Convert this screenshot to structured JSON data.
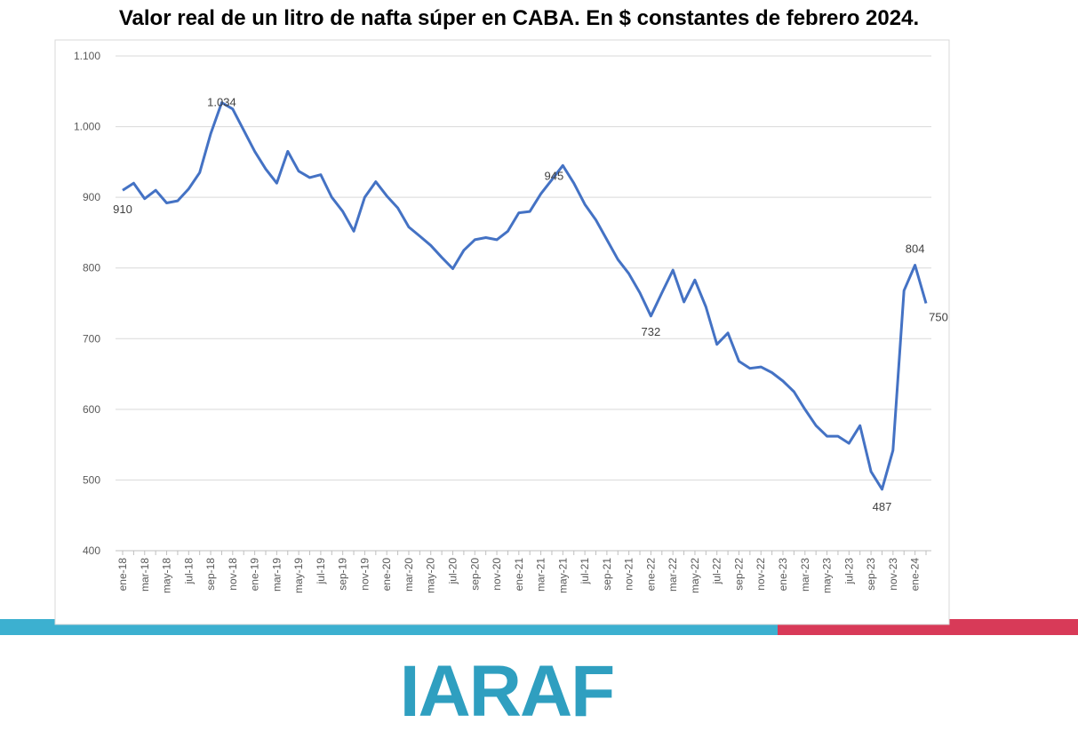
{
  "chart_data": {
    "type": "line",
    "title": "Valor real de un litro de nafta súper en CABA. En $ constantes de febrero 2024.",
    "categories": [
      "ene-18",
      null,
      "mar-18",
      null,
      "may-18",
      null,
      "jul-18",
      null,
      "sep-18",
      null,
      "nov-18",
      null,
      "ene-19",
      null,
      "mar-19",
      null,
      "may-19",
      null,
      "jul-19",
      null,
      "sep-19",
      null,
      "nov-19",
      null,
      "ene-20",
      null,
      "mar-20",
      null,
      "may-20",
      null,
      "jul-20",
      null,
      "sep-20",
      null,
      "nov-20",
      null,
      "ene-21",
      null,
      "mar-21",
      null,
      "may-21",
      null,
      "jul-21",
      null,
      "sep-21",
      null,
      "nov-21",
      null,
      "ene-22",
      null,
      "mar-22",
      null,
      "may-22",
      null,
      "jul-22",
      null,
      "sep-22",
      null,
      "nov-22",
      null,
      "ene-23",
      null,
      "mar-23",
      null,
      "may-23",
      null,
      "jul-23",
      null,
      "sep-23",
      null,
      "nov-23",
      null,
      "ene-24",
      null
    ],
    "series": [
      {
        "name": "Valor real",
        "color": "#4472c4",
        "values": [
          910,
          920,
          898,
          910,
          892,
          895,
          912,
          935,
          990,
          1034,
          1025,
          995,
          965,
          940,
          920,
          965,
          937,
          928,
          932,
          900,
          880,
          852,
          900,
          922,
          902,
          885,
          858,
          845,
          832,
          815,
          799,
          825,
          840,
          843,
          840,
          852,
          878,
          880,
          905,
          925,
          945,
          920,
          890,
          868,
          840,
          812,
          792,
          765,
          732,
          765,
          797,
          752,
          783,
          745,
          692,
          708,
          668,
          658,
          660,
          652,
          640,
          625,
          600,
          577,
          562,
          562,
          552,
          577,
          512,
          487,
          542,
          768,
          804,
          750
        ],
        "value_labels": [
          "910",
          null,
          null,
          null,
          null,
          null,
          null,
          null,
          null,
          "1.034",
          null,
          null,
          null,
          null,
          null,
          null,
          null,
          null,
          null,
          null,
          null,
          null,
          null,
          null,
          null,
          null,
          null,
          null,
          null,
          null,
          null,
          null,
          null,
          null,
          null,
          null,
          null,
          null,
          null,
          null,
          "945",
          null,
          null,
          null,
          null,
          null,
          null,
          null,
          "732",
          null,
          null,
          null,
          null,
          null,
          null,
          null,
          null,
          null,
          null,
          null,
          null,
          null,
          null,
          null,
          null,
          null,
          null,
          null,
          null,
          "487",
          null,
          null,
          "804",
          "750"
        ]
      }
    ],
    "ylim": [
      400,
      1100
    ],
    "yticks": [
      400,
      500,
      600,
      700,
      800,
      900,
      {
        "value": 1000,
        "label": "1.000"
      },
      {
        "value": 1100,
        "label": "1.100"
      }
    ],
    "grid": true
  },
  "logo": "IARAF"
}
